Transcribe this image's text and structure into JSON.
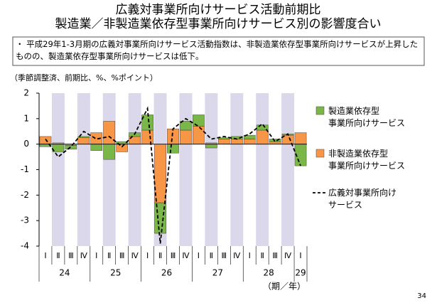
{
  "chart_data": {
    "type": "bar",
    "title": "広義対事業所向けサービス活動前期比",
    "subtitle": "製造業／非製造業依存型事業所向けサービス別の影響度合い",
    "note": "・ 平成29年1-3月期の広義対事業所向けサービス活動指数は、非製造業依存型事業所向けサービスが上昇したものの、製造業依存型事業所向けサービスは低下。",
    "y_label": "（季節調整済、前期比、%、%ポイント）",
    "x_label": "（期／年）",
    "page_number": "34",
    "categories": [
      "Ⅰ",
      "Ⅱ",
      "Ⅲ",
      "Ⅳ",
      "Ⅰ",
      "Ⅱ",
      "Ⅲ",
      "Ⅳ",
      "Ⅰ",
      "Ⅱ",
      "Ⅲ",
      "Ⅳ",
      "Ⅰ",
      "Ⅱ",
      "Ⅲ",
      "Ⅳ",
      "Ⅰ",
      "Ⅱ",
      "Ⅲ",
      "Ⅳ",
      "Ⅰ"
    ],
    "years": [
      "24",
      null,
      null,
      null,
      "25",
      null,
      null,
      null,
      "26",
      null,
      null,
      null,
      "27",
      null,
      null,
      null,
      "28",
      null,
      null,
      null,
      "29"
    ],
    "series": [
      {
        "name": "製造業依存型\n事業所向けサービス",
        "type": "bar",
        "color": "#7ab648",
        "values": [
          -0.1,
          -0.3,
          -0.15,
          0.05,
          -0.25,
          -0.6,
          0.1,
          0.15,
          0.6,
          -1.2,
          -0.35,
          0.35,
          0.45,
          -0.15,
          0.05,
          0.1,
          0.15,
          0.2,
          0.1,
          0.05,
          -0.85
        ]
      },
      {
        "name": "非製造業依存型\n事業所向けサービス",
        "type": "bar",
        "color": "#f79646",
        "values": [
          0.3,
          0.05,
          -0.05,
          0.25,
          0.45,
          0.9,
          -0.3,
          0.3,
          0.55,
          -2.3,
          0.6,
          0.55,
          0.7,
          0.05,
          0.2,
          0.2,
          0.2,
          0.55,
          0.1,
          0.35,
          0.45
        ]
      },
      {
        "name": "広義対事業所向け\nサービス",
        "type": "line",
        "color": "#000000",
        "values": [
          0.2,
          -0.5,
          -0.1,
          0.5,
          0.2,
          0.3,
          -0.1,
          0.4,
          1.4,
          -3.9,
          0.6,
          1.0,
          0.7,
          0.2,
          0.3,
          0.2,
          0.4,
          0.8,
          0.1,
          0.4,
          -0.85
        ]
      }
    ],
    "ylim": [
      -4,
      2
    ],
    "yticks": [
      -4,
      -3,
      -2,
      -1,
      0,
      1,
      2
    ],
    "shade_color": "#dcd8ec"
  }
}
